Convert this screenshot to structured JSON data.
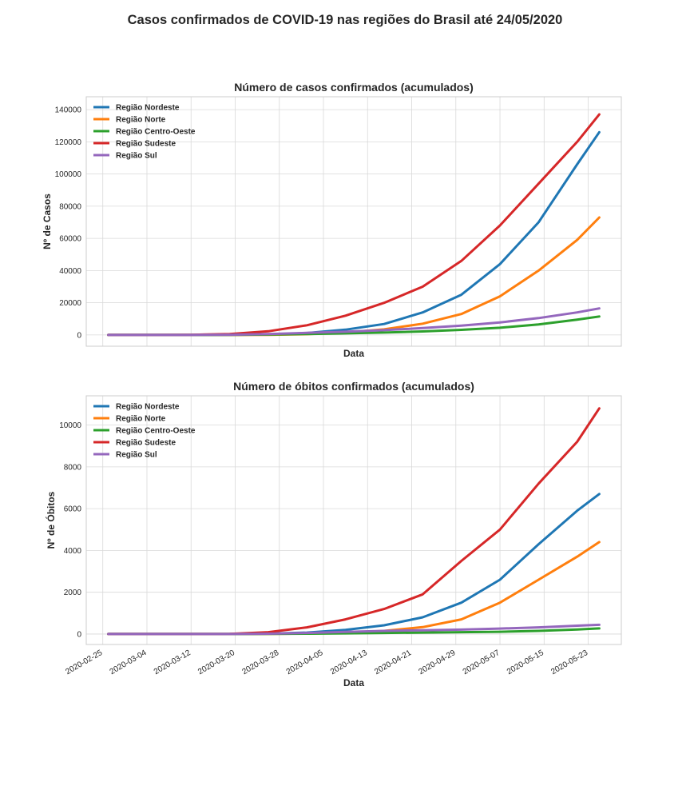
{
  "figure": {
    "title": "Casos confirmados de COVID-19 nas regiões do Brasil até 24/05/2020"
  },
  "chart_data": [
    {
      "type": "line",
      "title": "Número de casos confirmados (acumulados)",
      "xlabel": "Data",
      "ylabel": "Nº de Casos",
      "ylim": [
        -7000,
        148000
      ],
      "yticks": [
        0,
        20000,
        40000,
        60000,
        80000,
        100000,
        120000,
        140000
      ],
      "ytick_labels": [
        "0",
        "20000",
        "40000",
        "60000",
        "80000",
        "100000",
        "120000",
        "140000"
      ],
      "grid": true,
      "legend": "upper-left",
      "x": [
        "2020-02-26",
        "2020-03-05",
        "2020-03-12",
        "2020-03-19",
        "2020-03-26",
        "2020-04-02",
        "2020-04-09",
        "2020-04-16",
        "2020-04-23",
        "2020-04-30",
        "2020-05-07",
        "2020-05-14",
        "2020-05-21",
        "2020-05-25"
      ],
      "series": [
        {
          "name": "Região Nordeste",
          "color": "#1f77b4",
          "values": [
            0,
            0,
            10,
            60,
            300,
            1200,
            3300,
            6800,
            14000,
            25000,
            44000,
            70000,
            106000,
            126000
          ]
        },
        {
          "name": "Região Norte",
          "color": "#ff7f0e",
          "values": [
            0,
            0,
            0,
            20,
            100,
            500,
            1500,
            3500,
            7000,
            13000,
            24000,
            40000,
            59000,
            73000
          ]
        },
        {
          "name": "Região Centro-Oeste",
          "color": "#2ca02c",
          "values": [
            0,
            0,
            5,
            50,
            250,
            600,
            1000,
            1500,
            2200,
            3200,
            4500,
            6500,
            9500,
            11500
          ]
        },
        {
          "name": "Região Sudeste",
          "color": "#d62728",
          "values": [
            0,
            0,
            80,
            600,
            2300,
            6000,
            12000,
            20000,
            30000,
            46000,
            68000,
            94000,
            120000,
            137000
          ]
        },
        {
          "name": "Região Sul",
          "color": "#9467bd",
          "values": [
            0,
            0,
            20,
            150,
            600,
            1300,
            2000,
            3000,
            4300,
            5800,
            7800,
            10500,
            14000,
            16500
          ]
        }
      ]
    },
    {
      "type": "line",
      "title": "Número de óbitos confirmados (acumulados)",
      "xlabel": "Data",
      "ylabel": "Nº de Óbitos",
      "ylim": [
        -500,
        11400
      ],
      "yticks": [
        0,
        2000,
        4000,
        6000,
        8000,
        10000
      ],
      "ytick_labels": [
        "0",
        "2000",
        "4000",
        "6000",
        "8000",
        "10000"
      ],
      "xticks": [
        "2020-02-25",
        "2020-03-04",
        "2020-03-12",
        "2020-03-20",
        "2020-03-28",
        "2020-04-05",
        "2020-04-13",
        "2020-04-21",
        "2020-04-29",
        "2020-05-07",
        "2020-05-15",
        "2020-05-23"
      ],
      "grid": true,
      "legend": "upper-left",
      "x": [
        "2020-02-26",
        "2020-03-05",
        "2020-03-12",
        "2020-03-19",
        "2020-03-26",
        "2020-04-02",
        "2020-04-09",
        "2020-04-16",
        "2020-04-23",
        "2020-04-30",
        "2020-05-07",
        "2020-05-14",
        "2020-05-21",
        "2020-05-25"
      ],
      "series": [
        {
          "name": "Região Nordeste",
          "color": "#1f77b4",
          "values": [
            0,
            0,
            0,
            2,
            15,
            70,
            200,
            420,
            800,
            1500,
            2600,
            4300,
            5900,
            6700
          ]
        },
        {
          "name": "Região Norte",
          "color": "#ff7f0e",
          "values": [
            0,
            0,
            0,
            0,
            5,
            20,
            60,
            150,
            330,
            700,
            1500,
            2600,
            3700,
            4400
          ]
        },
        {
          "name": "Região Centro-Oeste",
          "color": "#2ca02c",
          "values": [
            0,
            0,
            0,
            0,
            5,
            15,
            30,
            50,
            70,
            90,
            110,
            150,
            220,
            270
          ]
        },
        {
          "name": "Região Sudeste",
          "color": "#d62728",
          "values": [
            0,
            0,
            0,
            10,
            90,
            320,
            700,
            1200,
            1900,
            3500,
            5000,
            7200,
            9200,
            10800
          ]
        },
        {
          "name": "Região Sul",
          "color": "#9467bd",
          "values": [
            0,
            0,
            0,
            2,
            15,
            50,
            100,
            150,
            180,
            210,
            260,
            320,
            400,
            440
          ]
        }
      ]
    }
  ]
}
